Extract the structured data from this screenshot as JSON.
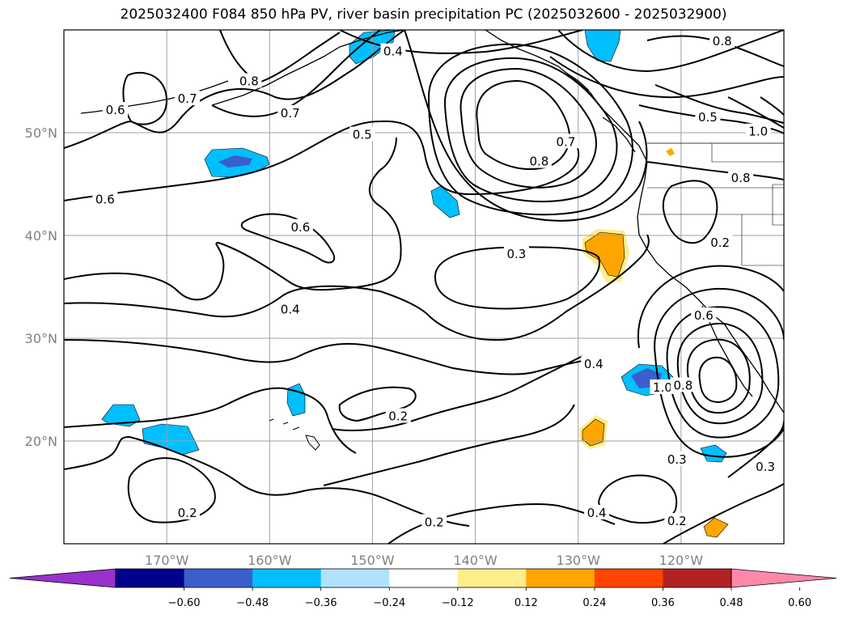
{
  "title": "2025032400 F084 850 hPa PV, river basin precipitation PC (2025032600 - 2025032900)",
  "map": {
    "lon_range": [
      -180,
      -110
    ],
    "lat_range": [
      10,
      60
    ],
    "lat_ticks": [
      {
        "value": 20,
        "label": "20°N"
      },
      {
        "value": 30,
        "label": "30°N"
      },
      {
        "value": 40,
        "label": "40°N"
      },
      {
        "value": 50,
        "label": "50°N"
      }
    ],
    "lon_ticks": [
      {
        "value": -170,
        "label": "170°W"
      },
      {
        "value": -160,
        "label": "160°W"
      },
      {
        "value": -150,
        "label": "150°W"
      },
      {
        "value": -140,
        "label": "140°W"
      },
      {
        "value": -130,
        "label": "130°W"
      },
      {
        "value": -120,
        "label": "120°W"
      }
    ],
    "contour_labels": [
      {
        "text": "0.4",
        "lon": -148,
        "lat": 57.9
      },
      {
        "text": "0.8",
        "lon": -162,
        "lat": 55.0
      },
      {
        "text": "0.7",
        "lon": -168,
        "lat": 53.3
      },
      {
        "text": "0.6",
        "lon": -175,
        "lat": 52.2
      },
      {
        "text": "0.7",
        "lon": -158,
        "lat": 51.9
      },
      {
        "text": "0.5",
        "lon": -151,
        "lat": 49.8
      },
      {
        "text": "0.6",
        "lon": -176,
        "lat": 43.5
      },
      {
        "text": "0.6",
        "lon": -157,
        "lat": 40.8
      },
      {
        "text": "0.3",
        "lon": -136,
        "lat": 38.2
      },
      {
        "text": "0.4",
        "lon": -158,
        "lat": 32.8
      },
      {
        "text": "0.7",
        "lon": -131.2,
        "lat": 49.1
      },
      {
        "text": "0.8",
        "lon": -133.8,
        "lat": 47.2
      },
      {
        "text": "0.8",
        "lon": -116,
        "lat": 58.9
      },
      {
        "text": "0.5",
        "lon": -117.4,
        "lat": 51.5
      },
      {
        "text": "1.0",
        "lon": -112.5,
        "lat": 50.1
      },
      {
        "text": "0.8",
        "lon": -114.2,
        "lat": 45.6
      },
      {
        "text": "0.2",
        "lon": -116.2,
        "lat": 39.3
      },
      {
        "text": "0.6",
        "lon": -117.8,
        "lat": 32.2
      },
      {
        "text": "0.4",
        "lon": -128.5,
        "lat": 27.5
      },
      {
        "text": "1.0",
        "lon": -121.8,
        "lat": 25.2
      },
      {
        "text": "0.8",
        "lon": -119.8,
        "lat": 25.4
      },
      {
        "text": "0.2",
        "lon": -147.5,
        "lat": 22.4
      },
      {
        "text": "0.3",
        "lon": -111.8,
        "lat": 17.5
      },
      {
        "text": "0.3",
        "lon": -120.4,
        "lat": 18.2
      },
      {
        "text": "0.4",
        "lon": -128.2,
        "lat": 13.0
      },
      {
        "text": "0.2",
        "lon": -144,
        "lat": 12.1
      },
      {
        "text": "0.2",
        "lon": -168,
        "lat": 13.0
      },
      {
        "text": "0.2",
        "lon": -120.4,
        "lat": 12.2
      }
    ]
  },
  "colorbar": {
    "colors": [
      "#9932cc",
      "#00008b",
      "#3a5fcd",
      "#00bfff",
      "#b0e2ff",
      "#ffffff",
      "#ffec8b",
      "#ffa500",
      "#ff4500",
      "#b22222",
      "#ff88aa"
    ],
    "tick_labels": [
      "−0.60",
      "−0.48",
      "−0.36",
      "−0.24",
      "−0.12",
      "0.12",
      "0.24",
      "0.36",
      "0.48",
      "0.60"
    ]
  }
}
